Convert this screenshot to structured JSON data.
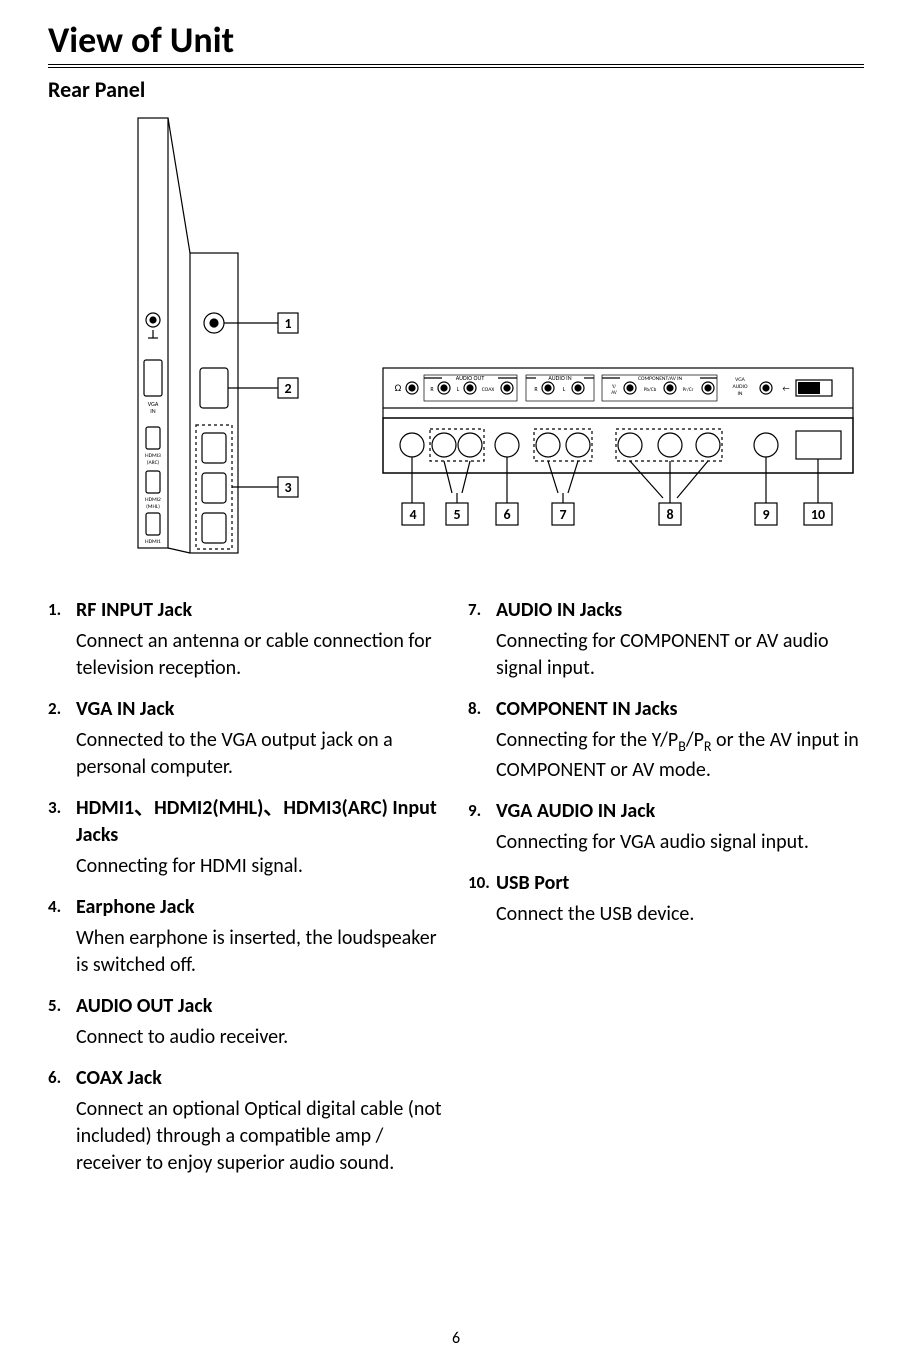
{
  "page": {
    "title": "View of Unit",
    "subtitle": "Rear Panel",
    "page_number": "6"
  },
  "side_panel": {
    "port_labels": [
      "VGA IN",
      "HDMI3\n(ARC)",
      "HDMI2\n(MHL)",
      "HDMI1"
    ],
    "callouts": [
      "1",
      "2",
      "3"
    ]
  },
  "bottom_panel": {
    "group_labels": {
      "headphone": "Ω",
      "audio_out": "AUDIO  OUT",
      "audio_out_sub": [
        "R",
        "L",
        "COAX"
      ],
      "audio_in": "AUDIO  IN",
      "audio_in_sub": [
        "R",
        "L"
      ],
      "component": "COMPONENT/AV IN",
      "component_sub": [
        "Y/\nAV",
        "Pb/Cb",
        "Pr/Cr"
      ],
      "vga_audio": "VGA\nAUDIO\nIN",
      "usb": "←"
    },
    "callouts": [
      "4",
      "5",
      "6",
      "7",
      "8",
      "9",
      "10"
    ]
  },
  "left_items": [
    {
      "title": "RF INPUT Jack",
      "desc": "Connect an antenna or cable connection for television reception."
    },
    {
      "title": "VGA IN Jack",
      "desc": "Connected to the VGA output jack on a personal computer."
    },
    {
      "title": "HDMI1、HDMI2(MHL)、HDMI3(ARC) Input Jacks",
      "desc": "Connecting for HDMI signal."
    },
    {
      "title": "Earphone Jack",
      "desc": "When earphone is inserted, the loudspeaker is switched off."
    },
    {
      "title": "AUDIO OUT Jack",
      "desc": "Connect to audio receiver."
    },
    {
      "title": "COAX Jack",
      "desc": "Connect an optional Optical digital cable (not included) through a compatible amp / receiver to enjoy superior audio sound."
    }
  ],
  "right_items": [
    {
      "title": "AUDIO IN Jacks",
      "desc": "Connecting for COMPONENT or AV audio signal input."
    },
    {
      "title": "COMPONENT IN Jacks",
      "desc_html": "Connecting for the Y/P<span class='sub'>B</span>/P<span class='sub'>R</span> or the AV input in COMPONENT or AV mode."
    },
    {
      "title": "VGA AUDIO IN Jack",
      "desc": "Connecting for VGA audio signal input."
    },
    {
      "title": "USB Port",
      "desc": "Connect the USB device."
    }
  ],
  "style": {
    "colors": {
      "text": "#000000",
      "bg": "#ffffff",
      "line": "#000000",
      "dashed": "#000000"
    },
    "title_fontsize": 36,
    "sub_fontsize": 22,
    "body_fontsize": 20,
    "diagram_callout_box": 18
  }
}
